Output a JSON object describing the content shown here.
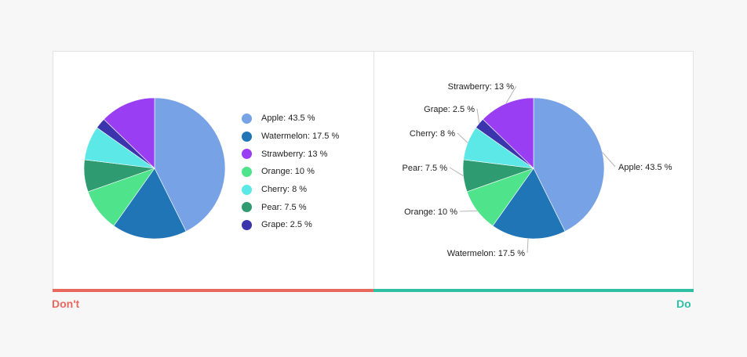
{
  "chart_data": [
    {
      "type": "pie",
      "categories": [
        "Apple",
        "Watermelon",
        "Strawberry",
        "Orange",
        "Cherry",
        "Pear",
        "Grape"
      ],
      "values": [
        43.5,
        17.5,
        13,
        10,
        8,
        7.5,
        2.5
      ],
      "legend_labels": [
        "Apple: 43.5 %",
        "Watermelon: 17.5 %",
        "Strawberry: 13 %",
        "Orange: 10 %",
        "Cherry: 8 %",
        "Pear: 7.5 %",
        "Grape: 2.5 %"
      ],
      "colors": [
        "#77a3e6",
        "#1f75b6",
        "#9a3ef4",
        "#4fe38c",
        "#5be8e6",
        "#2f9b71",
        "#3a34ad"
      ],
      "slice_order_clockwise_from_top": [
        "Apple",
        "Watermelon",
        "Orange",
        "Pear",
        "Cherry",
        "Grape",
        "Strawberry"
      ],
      "legend_position": "right",
      "labeling": "legend"
    },
    {
      "type": "pie",
      "categories": [
        "Apple",
        "Watermelon",
        "Strawberry",
        "Orange",
        "Cherry",
        "Pear",
        "Grape"
      ],
      "values": [
        43.5,
        17.5,
        13,
        10,
        8,
        7.5,
        2.5
      ],
      "slice_labels": [
        "Apple: 43.5 %",
        "Watermelon: 17.5 %",
        "Strawberry: 13 %",
        "Orange: 10 %",
        "Cherry: 8 %",
        "Pear: 7.5 %",
        "Grape: 2.5 %"
      ],
      "colors": [
        "#77a3e6",
        "#1f75b6",
        "#9a3ef4",
        "#4fe38c",
        "#5be8e6",
        "#2f9b71",
        "#3a34ad"
      ],
      "slice_order_clockwise_from_top": [
        "Apple",
        "Watermelon",
        "Orange",
        "Pear",
        "Cherry",
        "Grape",
        "Strawberry"
      ],
      "labeling": "direct labels with leader lines"
    }
  ],
  "captions": {
    "left": "Don't",
    "right": "Do"
  },
  "accent_colors": {
    "dont": "#e8685e",
    "do": "#2ebfa5"
  }
}
